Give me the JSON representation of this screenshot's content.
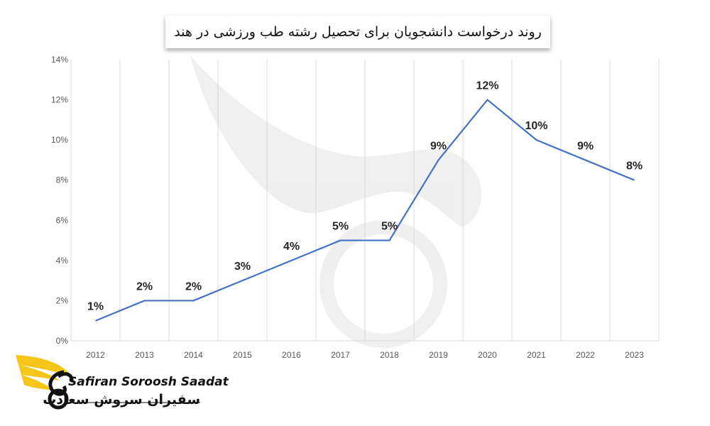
{
  "chart_data": {
    "type": "line",
    "title": "روند درخواست دانشجویان برای تحصیل رشته طب ورزشی در هند",
    "categories": [
      "2012",
      "2013",
      "2014",
      "2015",
      "2016",
      "2017",
      "2018",
      "2019",
      "2020",
      "2021",
      "2022",
      "2023"
    ],
    "series": [
      {
        "values": [
          1,
          2,
          2,
          3,
          4,
          5,
          5,
          9,
          12,
          10,
          9,
          8
        ],
        "data_labels": [
          "1%",
          "2%",
          "2%",
          "3%",
          "4%",
          "5%",
          "5%",
          "9%",
          "12%",
          "10%",
          "9%",
          "8%"
        ]
      }
    ],
    "ylim": [
      0,
      14
    ],
    "y_ticks": [
      "0%",
      "2%",
      "4%",
      "6%",
      "8%",
      "10%",
      "12%",
      "14%"
    ],
    "xlabel": "",
    "ylabel": "",
    "grid": "vertical",
    "legend": "none",
    "colors": {
      "line": "#4472c4",
      "grid": "#d9d9d9",
      "axis_text": "#595959",
      "label_text": "#262626"
    }
  },
  "brand": {
    "latin": "Safiran Soroosh Saadat",
    "persian": "سفیران سروش سعادت",
    "logo_icon": "winged-s-logo-icon",
    "colors": {
      "wing": "#f5c518",
      "text": "#111111"
    }
  }
}
